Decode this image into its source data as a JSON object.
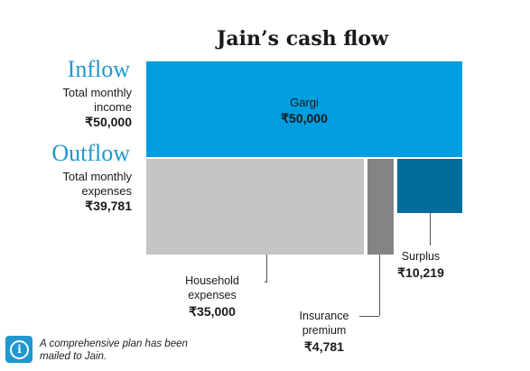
{
  "title": "Jain’s cash flow",
  "inflow": {
    "heading": "Inflow",
    "label": "Total monthly income",
    "value": "₹50,000"
  },
  "outflow": {
    "heading": "Outflow",
    "label": "Total monthly expenses",
    "value": "₹39,781"
  },
  "note": "A comprehensive plan has been mailed to Jain.",
  "chart_data": {
    "type": "treemap",
    "title": "Jain’s cash flow",
    "colors": {
      "income": "#009de0",
      "household": "#c4c4c4",
      "insurance": "#848484",
      "surplus": "#006c9a"
    },
    "inflow": [
      {
        "name": "Gargi",
        "value": 50000,
        "label": "₹50,000",
        "color_key": "income"
      }
    ],
    "outflow": [
      {
        "name": "Household expenses",
        "value": 35000,
        "label": "₹35,000",
        "color_key": "household"
      },
      {
        "name": "Insurance premium",
        "value": 4781,
        "label": "₹4,781",
        "color_key": "insurance"
      },
      {
        "name": "Surplus",
        "value": 10219,
        "label": "₹10,219",
        "color_key": "surplus"
      }
    ]
  }
}
